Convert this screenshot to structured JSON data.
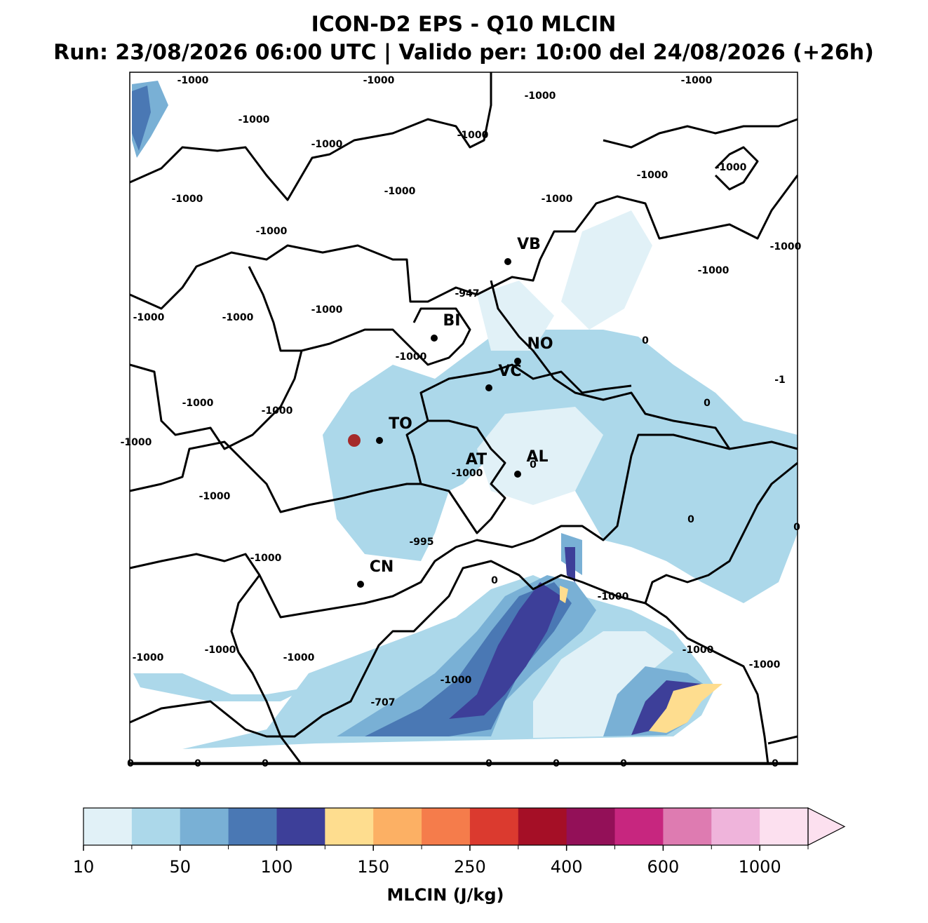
{
  "header": {
    "title": "ICON-D2 EPS - Q10 MLCIN",
    "subtitle": "Run: 23/08/2026 06:00 UTC | Valido per: 10:00 del 24/08/2026 (+26h)"
  },
  "map": {
    "cities": [
      "VB",
      "BI",
      "NO",
      "VC",
      "TO",
      "AT",
      "AL",
      "CN"
    ],
    "contour_labels": [
      -1000,
      -1000,
      -1000,
      -1000,
      -1000,
      -1000,
      -1000,
      -1000,
      -1000,
      -1000,
      -1000,
      -1000,
      -1000,
      -1000,
      -1000,
      -947,
      -1000,
      -1000,
      -1000,
      -1000,
      0,
      -1,
      0,
      -1000,
      -1000,
      -1000,
      0,
      -1000,
      -1000,
      0,
      0,
      -995,
      -1000,
      0,
      -1000,
      -1000,
      -1000,
      -1000,
      -1000,
      -1000,
      -1000,
      -707,
      0,
      0,
      0,
      0,
      0,
      0,
      0
    ]
  },
  "colorbar": {
    "colors": [
      "#e1f1f7",
      "#acd8ea",
      "#79b0d5",
      "#4a78b4",
      "#3d3f99",
      "#fedd8f",
      "#fcb064",
      "#f57c4b",
      "#db3a2f",
      "#a50f26",
      "#931058",
      "#c7267f",
      "#de7bb1",
      "#efb4db",
      "#fce0ef"
    ],
    "ticks": [
      10,
      50,
      100,
      150,
      250,
      400,
      600,
      1000
    ],
    "label": "MLCIN (J/kg)"
  }
}
